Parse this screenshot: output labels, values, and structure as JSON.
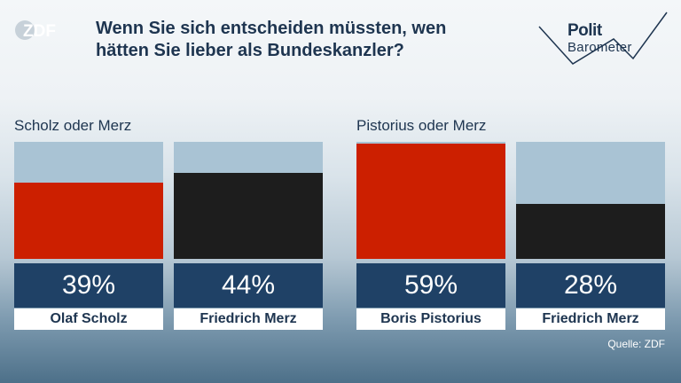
{
  "logo_text": "ZDF",
  "title_lines": [
    "Wenn Sie sich entscheiden müssten, wen",
    "hätten Sie lieber als Bundeskanzler?"
  ],
  "brand": {
    "line1": "Polit",
    "line2": "Barometer"
  },
  "source": "Quelle: ZDF",
  "colors": {
    "spd_red": "#cc1f00",
    "cdu_black": "#1d1d1d",
    "bar_background": "#a9c3d4",
    "value_box": "#1f4166"
  },
  "chart_data": {
    "type": "bar",
    "title": "Wenn Sie sich entscheiden müssten, wen hätten Sie lieber als Bundeskanzler?",
    "ylim": [
      0,
      60
    ],
    "groups": [
      {
        "label": "Scholz oder Merz",
        "bars": [
          {
            "name": "Olaf Scholz",
            "value": 39,
            "display": "39%",
            "color": "#cc1f00"
          },
          {
            "name": "Friedrich Merz",
            "value": 44,
            "display": "44%",
            "color": "#1d1d1d"
          }
        ]
      },
      {
        "label": "Pistorius oder Merz",
        "bars": [
          {
            "name": "Boris Pistorius",
            "value": 59,
            "display": "59%",
            "color": "#cc1f00"
          },
          {
            "name": "Friedrich Merz",
            "value": 28,
            "display": "28%",
            "color": "#1d1d1d"
          }
        ]
      }
    ]
  }
}
